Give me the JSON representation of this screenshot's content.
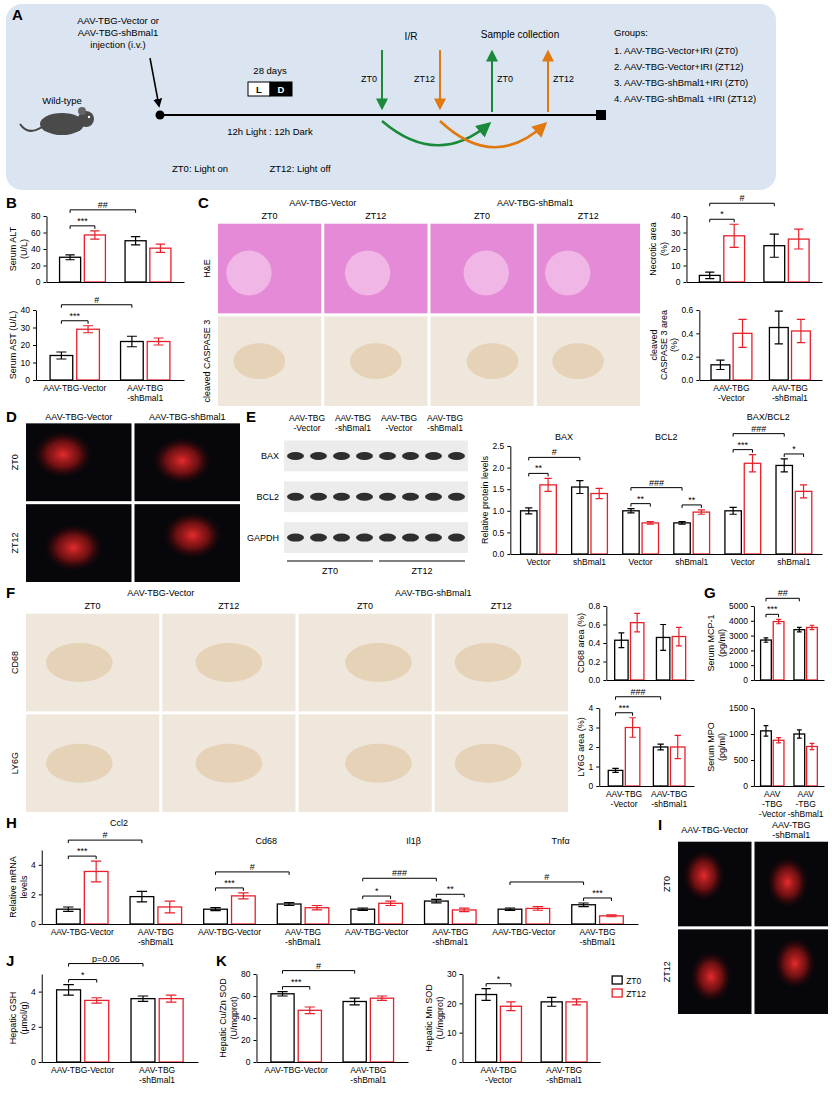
{
  "schematic": {
    "panel": "A",
    "injection": [
      "AAV-TBG-Vector or",
      "AAV-TBG-shBmal1",
      "injection (i.v.)"
    ],
    "mouse": "Wild-type",
    "duration": "28 days",
    "light": "L",
    "dark": "D",
    "cycle": "12h Light : 12h Dark",
    "surgery": "I/R",
    "surgery_times": [
      "ZT0",
      "ZT12"
    ],
    "collection": "Sample collection",
    "collection_times": [
      "ZT0",
      "ZT12"
    ],
    "notes": [
      "ZT0: Light on",
      "ZT12: Light off"
    ],
    "groups_title": "Groups:",
    "groups": [
      "1. AAV-TBG-Vector+IRI (ZT0)",
      "2. AAV-TBG-Vector+IRI (ZT12)",
      "3. AAV-TBG-shBmal1+IRI (ZT0)",
      "4. AAV-TBG-shBmal1 +IRI (ZT12)"
    ]
  },
  "image_panels": [
    {
      "panel": "C",
      "column_groups": [
        "AAV-TBG-Vector",
        "AAV-TBG-shBmal1"
      ],
      "columns": [
        "ZT0",
        "ZT12",
        "ZT0",
        "ZT12"
      ],
      "rows": [
        "H&E",
        "cleaved CASPASE 3"
      ]
    },
    {
      "panel": "D",
      "column_groups": [
        "AAV-TBG-Vector",
        "AAV-TBG-shBmal1"
      ],
      "rows": [
        "ZT0",
        "ZT12"
      ]
    },
    {
      "panel": "F",
      "column_groups": [
        "AAV-TBG-Vector",
        "AAV-TBG-shBmal1"
      ],
      "columns": [
        "ZT0",
        "ZT12",
        "ZT0",
        "ZT12"
      ],
      "rows": [
        "CD68",
        "LY6G"
      ]
    },
    {
      "panel": "I",
      "column_groups": [
        "AAV-TBG-Vector",
        "AAV-TBG-shBmal1"
      ],
      "rows": [
        "ZT0",
        "ZT12"
      ]
    }
  ],
  "blot": {
    "panel": "E",
    "lanes": [
      "AAV-TBG -Vector",
      "AAV-TBG -shBmal1",
      "AAV-TBG -Vector",
      "AAV-TBG -shBmal1"
    ],
    "proteins": [
      "BAX",
      "BCL2",
      "GAPDH"
    ],
    "timepoints": [
      "ZT0",
      "ZT12"
    ]
  },
  "chart_data": [
    {
      "panel": "B",
      "type": "bar",
      "y_label": "Serum ALT (U/L)",
      "categories": [
        null,
        null
      ],
      "tick_labels": "y",
      "series": [
        {
          "name": "ZT0",
          "color": "#000000",
          "values": [
            30,
            50
          ],
          "errors": [
            3,
            5
          ]
        },
        {
          "name": "ZT12",
          "color": "#e8202a",
          "values": [
            57,
            41
          ],
          "errors": [
            5,
            5
          ]
        }
      ],
      "ylim": [
        0,
        80
      ],
      "yticks": [
        0,
        20,
        40,
        60,
        80
      ],
      "annotations": [
        {
          "text": "***",
          "between": [
            [
              0,
              0
            ],
            [
              0,
              1
            ]
          ]
        },
        {
          "text": "##",
          "between": [
            [
              0,
              0
            ],
            [
              1,
              0
            ]
          ]
        }
      ]
    },
    {
      "type": "bar",
      "y_label": "Serum AST (U/L)",
      "categories": [
        "AAV-TBG-Vector",
        "AAV-TBG-shBmal1"
      ],
      "series": [
        {
          "name": "ZT0",
          "color": "#000000",
          "values": [
            14,
            22
          ],
          "errors": [
            2,
            3
          ]
        },
        {
          "name": "ZT12",
          "color": "#e8202a",
          "values": [
            29,
            22
          ],
          "errors": [
            2,
            2
          ]
        }
      ],
      "ylim": [
        0,
        40
      ],
      "yticks": [
        0,
        10,
        20,
        30,
        40
      ],
      "annotations": [
        {
          "text": "***",
          "between": [
            [
              0,
              0
            ],
            [
              0,
              1
            ]
          ]
        },
        {
          "text": "#",
          "between": [
            [
              0,
              0
            ],
            [
              1,
              0
            ]
          ]
        }
      ]
    },
    {
      "type": "bar",
      "y_label": "Necrotic area (%)",
      "categories": [
        null,
        null
      ],
      "tick_labels": "y",
      "series": [
        {
          "name": "ZT0",
          "color": "#000000",
          "values": [
            4,
            22
          ],
          "errors": [
            2,
            7
          ]
        },
        {
          "name": "ZT12",
          "color": "#e8202a",
          "values": [
            28,
            26
          ],
          "errors": [
            7,
            6
          ]
        }
      ],
      "ylim": [
        0,
        40
      ],
      "yticks": [
        0,
        10,
        20,
        30,
        40
      ],
      "annotations": [
        {
          "text": "*",
          "between": [
            [
              0,
              0
            ],
            [
              0,
              1
            ]
          ]
        },
        {
          "text": "#",
          "between": [
            [
              0,
              0
            ],
            [
              1,
              0
            ]
          ]
        }
      ]
    },
    {
      "type": "bar",
      "y_label": "cleaved CASPASE 3 area (%)",
      "categories": [
        "AAV-TBG-Vector",
        "AAV-TBG-shBmal1"
      ],
      "series": [
        {
          "name": "ZT0",
          "color": "#000000",
          "values": [
            0.13,
            0.45
          ],
          "errors": [
            0.04,
            0.14
          ]
        },
        {
          "name": "ZT12",
          "color": "#e8202a",
          "values": [
            0.4,
            0.42
          ],
          "errors": [
            0.12,
            0.1
          ]
        }
      ],
      "ylim": [
        0,
        0.6
      ],
      "yticks": [
        {
          "value": 0,
          "label": "0.0"
        },
        0.2,
        0.4,
        0.6
      ]
    },
    {
      "type": "bar",
      "y_label": "Relative protein levels",
      "categories": [
        "Vector",
        "shBmal1",
        "Vector",
        "shBmal1",
        "Vector",
        "shBmal1"
      ],
      "groups": [
        "BAX",
        "BCL2",
        "BAX/BCL2"
      ],
      "series": [
        {
          "name": "ZT0",
          "color": "#000000",
          "values": [
            1.0,
            1.55,
            1.0,
            0.72,
            1.0,
            2.05
          ],
          "errors": [
            0.07,
            0.15,
            0.05,
            0.03,
            0.08,
            0.15
          ]
        },
        {
          "name": "ZT12",
          "color": "#e8202a",
          "values": [
            1.6,
            1.4,
            0.72,
            0.97,
            2.1,
            1.45
          ],
          "errors": [
            0.15,
            0.12,
            0.03,
            0.05,
            0.2,
            0.15
          ]
        }
      ],
      "ylim": [
        0,
        2.5
      ],
      "yticks": [
        {
          "value": 0,
          "label": "0.0"
        },
        0.5,
        {
          "value": 1,
          "label": "1.0"
        },
        1.5,
        {
          "value": 2,
          "label": "2.0"
        },
        2.5
      ],
      "annotations": [
        {
          "text": "**",
          "between": [
            [
              0,
              0
            ],
            [
              0,
              1
            ]
          ]
        },
        {
          "text": "#",
          "between": [
            [
              0,
              0
            ],
            [
              1,
              0
            ]
          ]
        },
        {
          "text": "**",
          "between": [
            [
              2,
              0
            ],
            [
              2,
              1
            ]
          ]
        },
        {
          "text": "###",
          "between": [
            [
              2,
              0
            ],
            [
              3,
              0
            ]
          ]
        },
        {
          "text": "**",
          "between": [
            [
              3,
              0
            ],
            [
              3,
              1
            ]
          ]
        },
        {
          "text": "***",
          "between": [
            [
              4,
              0
            ],
            [
              4,
              1
            ]
          ]
        },
        {
          "text": "###",
          "between": [
            [
              4,
              0
            ],
            [
              5,
              0
            ]
          ]
        },
        {
          "text": "*",
          "between": [
            [
              5,
              0
            ],
            [
              5,
              1
            ]
          ]
        }
      ]
    },
    {
      "type": "bar",
      "y_label": "CD68 area (%)",
      "categories": [
        null,
        null
      ],
      "tick_labels": "y",
      "series": [
        {
          "name": "ZT0",
          "color": "#000000",
          "values": [
            0.43,
            0.46
          ],
          "errors": [
            0.08,
            0.14
          ]
        },
        {
          "name": "ZT12",
          "color": "#e8202a",
          "values": [
            0.62,
            0.47
          ],
          "errors": [
            0.1,
            0.1
          ]
        }
      ],
      "ylim": [
        0,
        0.8
      ],
      "yticks": [
        {
          "value": 0,
          "label": "0.0"
        },
        0.2,
        0.4,
        0.6,
        0.8
      ]
    },
    {
      "type": "bar",
      "y_label": "LY6G area (%)",
      "categories": [
        "AAV-TBG-Vector",
        "AAV-TBG-shBmal1"
      ],
      "series": [
        {
          "name": "ZT0",
          "color": "#000000",
          "values": [
            0.8,
            2.0
          ],
          "errors": [
            0.1,
            0.15
          ]
        },
        {
          "name": "ZT12",
          "color": "#e8202a",
          "values": [
            3.0,
            2.0
          ],
          "errors": [
            0.5,
            0.6
          ]
        }
      ],
      "ylim": [
        0,
        4
      ],
      "yticks": [
        0,
        1,
        2,
        3,
        4
      ],
      "annotations": [
        {
          "text": "***",
          "between": [
            [
              0,
              0
            ],
            [
              0,
              1
            ]
          ]
        },
        {
          "text": "###",
          "between": [
            [
              0,
              0
            ],
            [
              1,
              0
            ]
          ]
        }
      ]
    },
    {
      "panel": "G",
      "type": "bar",
      "y_label": "Serum MCP-1 (pg/ml)",
      "categories": [
        null,
        null
      ],
      "tick_labels": "y",
      "series": [
        {
          "name": "ZT0",
          "color": "#000000",
          "values": [
            2700,
            3400
          ],
          "errors": [
            150,
            150
          ]
        },
        {
          "name": "ZT12",
          "color": "#e8202a",
          "values": [
            3950,
            3550
          ],
          "errors": [
            150,
            150
          ]
        }
      ],
      "ylim": [
        0,
        5000
      ],
      "yticks": [
        0,
        1000,
        2000,
        3000,
        4000,
        5000
      ],
      "annotations": [
        {
          "text": "***",
          "between": [
            [
              0,
              0
            ],
            [
              0,
              1
            ]
          ]
        },
        {
          "text": "##",
          "between": [
            [
              0,
              0
            ],
            [
              1,
              0
            ]
          ]
        }
      ]
    },
    {
      "type": "bar",
      "y_label": "Serum MPO (pg/ml)",
      "categories": [
        "AAV-TBG-Vector",
        "AAV-TBG-shBmal1"
      ],
      "series": [
        {
          "name": "ZT0",
          "color": "#000000",
          "values": [
            1060,
            1000
          ],
          "errors": [
            100,
            80
          ]
        },
        {
          "name": "ZT12",
          "color": "#e8202a",
          "values": [
            880,
            760
          ],
          "errors": [
            50,
            60
          ]
        }
      ],
      "ylim": [
        0,
        1500
      ],
      "yticks": [
        0,
        500,
        1000,
        1500
      ]
    },
    {
      "panel": "H",
      "type": "bar",
      "y_label": "Relative mRNA levels",
      "categories": [
        "AAV-TBG-Vector",
        "AAV-TBG-shBmal1",
        "AAV-TBG-Vector",
        "AAV-TBG-shBmal1",
        "AAV-TBG-Vector",
        "AAV-TBG-shBmal1",
        "AAV-TBG-Vector",
        "AAV-TBG-shBmal1"
      ],
      "groups": [
        "Ccl2",
        "Cd68",
        "Il1β",
        "Tnfα"
      ],
      "series": [
        {
          "name": "ZT0",
          "color": "#000000",
          "values": [
            1.0,
            1.85,
            1.0,
            1.35,
            1.0,
            1.55,
            1.0,
            1.3
          ],
          "errors": [
            0.15,
            0.35,
            0.1,
            0.1,
            0.08,
            0.12,
            0.08,
            0.12
          ]
        },
        {
          "name": "ZT12",
          "color": "#e8202a",
          "values": [
            3.55,
            1.15,
            1.9,
            1.1,
            1.4,
            0.95,
            1.05,
            0.55
          ],
          "errors": [
            0.7,
            0.4,
            0.2,
            0.15,
            0.15,
            0.12,
            0.12,
            0.06
          ]
        }
      ],
      "ylim": [
        0,
        5
      ],
      "yticks": [
        0,
        2,
        4
      ],
      "annotations": [
        {
          "text": "***",
          "between": [
            [
              0,
              0
            ],
            [
              0,
              1
            ]
          ]
        },
        {
          "text": "#",
          "between": [
            [
              0,
              0
            ],
            [
              1,
              0
            ]
          ]
        },
        {
          "text": "***",
          "between": [
            [
              2,
              0
            ],
            [
              2,
              1
            ]
          ]
        },
        {
          "text": "#",
          "between": [
            [
              2,
              0
            ],
            [
              3,
              0
            ]
          ]
        },
        {
          "text": "*",
          "between": [
            [
              4,
              0
            ],
            [
              4,
              1
            ]
          ]
        },
        {
          "text": "###",
          "between": [
            [
              4,
              0
            ],
            [
              5,
              0
            ]
          ]
        },
        {
          "text": "**",
          "between": [
            [
              5,
              0
            ],
            [
              5,
              1
            ]
          ]
        },
        {
          "text": "#",
          "between": [
            [
              6,
              0
            ],
            [
              7,
              0
            ]
          ]
        },
        {
          "text": "***",
          "between": [
            [
              7,
              0
            ],
            [
              7,
              1
            ]
          ]
        }
      ]
    },
    {
      "panel": "J",
      "type": "bar",
      "y_label": "Hepatic GSH (μmol/g)",
      "categories": [
        "AAV-TBG-Vector",
        "AAV-TBG-shBmal1"
      ],
      "series": [
        {
          "name": "ZT0",
          "color": "#000000",
          "values": [
            4.1,
            3.6
          ],
          "errors": [
            0.3,
            0.15
          ]
        },
        {
          "name": "ZT12",
          "color": "#e8202a",
          "values": [
            3.5,
            3.6
          ],
          "errors": [
            0.15,
            0.2
          ]
        }
      ],
      "ylim": [
        0,
        5
      ],
      "yticks": [
        0,
        2,
        4
      ],
      "annotations": [
        {
          "text": "*",
          "between": [
            [
              0,
              0
            ],
            [
              0,
              1
            ]
          ]
        },
        {
          "text": "p=0.06",
          "between": [
            [
              0,
              0
            ],
            [
              1,
              0
            ]
          ]
        }
      ]
    },
    {
      "panel": "K",
      "type": "bar",
      "y_label": "Hepatic Cu/Zn SOD (U/mgprot)",
      "categories": [
        "AAV-TBG-Vector",
        "AAV-TBG-shBmal1"
      ],
      "series": [
        {
          "name": "ZT0",
          "color": "#000000",
          "values": [
            62,
            55
          ],
          "errors": [
            2,
            3
          ]
        },
        {
          "name": "ZT12",
          "color": "#e8202a",
          "values": [
            47,
            58
          ],
          "errors": [
            3,
            2
          ]
        }
      ],
      "ylim": [
        0,
        80
      ],
      "yticks": [
        0,
        20,
        40,
        60,
        80
      ],
      "annotations": [
        {
          "text": "***",
          "between": [
            [
              0,
              0
            ],
            [
              0,
              1
            ]
          ]
        },
        {
          "text": "#",
          "between": [
            [
              0,
              0
            ],
            [
              1,
              0
            ]
          ]
        }
      ]
    },
    {
      "type": "bar",
      "y_label": "Hepatic Mn SOD (U/mgprot)",
      "categories": [
        "AAV-TBG-Vector",
        "AAV-TBG-shBmal1"
      ],
      "series": [
        {
          "name": "ZT0",
          "color": "#000000",
          "values": [
            23,
            20.5
          ],
          "errors": [
            2,
            1.5
          ]
        },
        {
          "name": "ZT12",
          "color": "#e8202a",
          "values": [
            19,
            20.5
          ],
          "errors": [
            1.5,
            1
          ]
        }
      ],
      "ylim": [
        0,
        30
      ],
      "yticks": [
        0,
        10,
        20,
        30
      ],
      "legend": "right",
      "annotations": [
        {
          "text": "*",
          "between": [
            [
              0,
              0
            ],
            [
              0,
              1
            ]
          ]
        }
      ]
    }
  ]
}
